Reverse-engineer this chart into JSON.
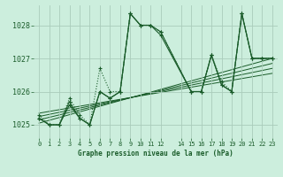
{
  "title": "Graphe pression niveau de la mer (hPa)",
  "bg_color": "#cceedd",
  "grid_color": "#aaccbb",
  "line_color": "#1a5c2a",
  "ylim": [
    1024.6,
    1028.6
  ],
  "xlim": [
    -0.5,
    23.5
  ],
  "yticks": [
    1025,
    1026,
    1027,
    1028
  ],
  "xticks": [
    0,
    1,
    2,
    3,
    4,
    5,
    6,
    7,
    8,
    9,
    10,
    11,
    12,
    14,
    15,
    16,
    17,
    18,
    19,
    20,
    21,
    22,
    23
  ],
  "series": [
    {
      "x": [
        0,
        1,
        2,
        3,
        4,
        5,
        6,
        7,
        8,
        9,
        10,
        11,
        12,
        15,
        16,
        17,
        18,
        19,
        20,
        21,
        22,
        23
      ],
      "y": [
        1025.3,
        1025.0,
        1025.0,
        1025.8,
        1025.3,
        1025.0,
        1026.7,
        1026.0,
        1026.0,
        1028.35,
        1028.0,
        1028.0,
        1027.8,
        1026.0,
        1026.0,
        1027.1,
        1026.3,
        1026.0,
        1028.35,
        1027.0,
        1027.0,
        1027.0
      ],
      "style": "dotted"
    },
    {
      "x": [
        0,
        1,
        2,
        3,
        4,
        5,
        6,
        7,
        8,
        9,
        10,
        11,
        12,
        15,
        16,
        17,
        18,
        19,
        20,
        21,
        22,
        23
      ],
      "y": [
        1025.2,
        1025.0,
        1025.0,
        1025.7,
        1025.2,
        1025.0,
        1026.0,
        1025.8,
        1026.0,
        1028.35,
        1028.0,
        1028.0,
        1027.8,
        1026.0,
        1026.0,
        1027.1,
        1026.2,
        1026.0,
        1028.35,
        1027.0,
        1027.0,
        1027.0
      ],
      "style": "solid"
    },
    {
      "x": [
        0,
        1,
        2,
        3,
        4,
        5,
        6,
        7,
        8,
        9,
        10,
        11,
        12,
        15,
        16,
        17,
        18,
        19,
        20,
        21,
        22,
        23
      ],
      "y": [
        1025.2,
        1025.0,
        1025.0,
        1025.6,
        1025.2,
        1025.0,
        1026.0,
        1025.8,
        1026.0,
        1028.35,
        1028.0,
        1028.0,
        1027.7,
        1026.0,
        1026.0,
        1027.1,
        1026.2,
        1026.0,
        1028.35,
        1027.0,
        1027.0,
        1027.0
      ],
      "style": "solid"
    }
  ],
  "trends": [
    {
      "x": [
        0,
        23
      ],
      "y": [
        1025.05,
        1027.0
      ]
    },
    {
      "x": [
        0,
        23
      ],
      "y": [
        1025.15,
        1026.85
      ]
    },
    {
      "x": [
        0,
        23
      ],
      "y": [
        1025.25,
        1026.7
      ]
    },
    {
      "x": [
        0,
        23
      ],
      "y": [
        1025.35,
        1026.55
      ]
    }
  ]
}
